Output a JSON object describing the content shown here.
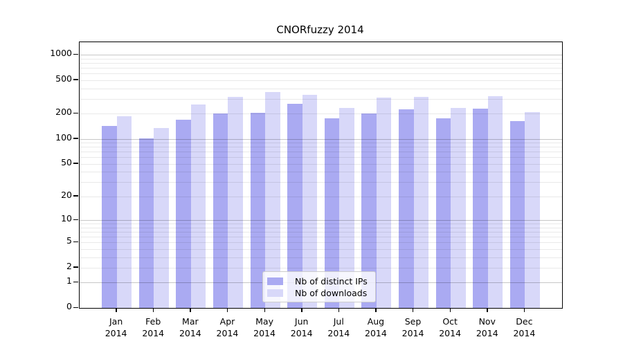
{
  "chart_data": {
    "type": "bar",
    "title": "CNORfuzzy 2014",
    "categories": [
      "Jan 2014",
      "Feb 2014",
      "Mar 2014",
      "Apr 2014",
      "May 2014",
      "Jun 2014",
      "Jul 2014",
      "Aug 2014",
      "Sep 2014",
      "Oct 2014",
      "Nov 2014",
      "Dec 2014"
    ],
    "series": [
      {
        "name": "Nb of distinct IPs",
        "color": "#aaaaf2",
        "values": [
          142,
          102,
          170,
          201,
          206,
          262,
          175,
          201,
          227,
          176,
          231,
          162
        ]
      },
      {
        "name": "Nb of downloads",
        "color": "#d8d8f9",
        "values": [
          188,
          134,
          255,
          316,
          362,
          336,
          235,
          312,
          315,
          232,
          321,
          210
        ]
      }
    ],
    "yscale": "log1p",
    "yticks": [
      0,
      1,
      2,
      5,
      10,
      20,
      50,
      100,
      200,
      500,
      1000
    ],
    "ylim": [
      0,
      1412
    ],
    "grid": "horizontal major+minor",
    "legend_position": "inside lower-center",
    "xlabel": "",
    "ylabel": ""
  }
}
